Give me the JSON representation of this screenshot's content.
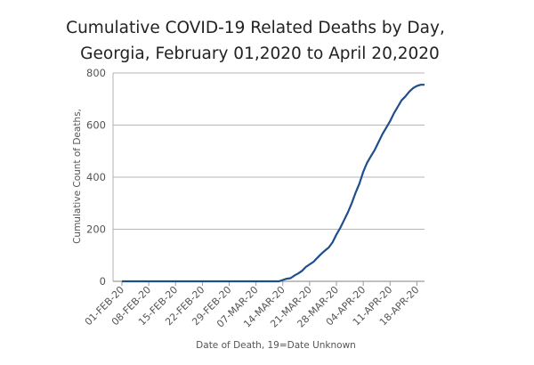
{
  "chart_data": {
    "type": "line",
    "title_line1": "Cumulative COVID-19 Related Deaths by Day,",
    "title_line2": "Georgia,  February 01,2020  to  April 20,2020",
    "xlabel": "Date of Death, 19=Date Unknown",
    "ylabel": "Cumulative Count of Deaths,",
    "ylim": [
      0,
      800
    ],
    "yticks": [
      0,
      200,
      400,
      600,
      800
    ],
    "grid": "horizontal",
    "x_tick_labels": [
      "01-FEB-20",
      "08-FEB-20",
      "15-FEB-20",
      "22-FEB-20",
      "29-FEB-20",
      "07-MAR-20",
      "14-MAR-20",
      "21-MAR-20",
      "28-MAR-20",
      "04-APR-20",
      "11-APR-20",
      "18-APR-20"
    ],
    "x_start_date": "2020-02-01",
    "x_end_date": "2020-04-20",
    "line_color": "#1f4e8c",
    "series": [
      {
        "x": [
          "2020-02-01",
          "2020-03-13",
          "2020-03-14",
          "2020-03-15",
          "2020-03-16",
          "2020-03-17",
          "2020-03-18",
          "2020-03-19",
          "2020-03-20",
          "2020-03-21",
          "2020-03-22",
          "2020-03-23",
          "2020-03-24",
          "2020-03-25",
          "2020-03-26",
          "2020-03-27",
          "2020-03-28",
          "2020-03-29",
          "2020-03-30",
          "2020-03-31",
          "2020-04-01",
          "2020-04-02",
          "2020-04-03",
          "2020-04-04",
          "2020-04-05",
          "2020-04-06",
          "2020-04-07",
          "2020-04-08",
          "2020-04-09",
          "2020-04-10",
          "2020-04-11",
          "2020-04-12",
          "2020-04-13",
          "2020-04-14",
          "2020-04-15",
          "2020-04-16",
          "2020-04-17",
          "2020-04-18",
          "2020-04-19",
          "2020-04-20"
        ],
        "y": [
          0,
          0,
          5,
          10,
          12,
          22,
          30,
          40,
          55,
          65,
          75,
          90,
          105,
          118,
          130,
          150,
          180,
          205,
          235,
          265,
          300,
          340,
          375,
          420,
          455,
          480,
          505,
          535,
          565,
          590,
          615,
          645,
          670,
          695,
          710,
          728,
          742,
          750,
          755,
          755
        ]
      }
    ]
  }
}
